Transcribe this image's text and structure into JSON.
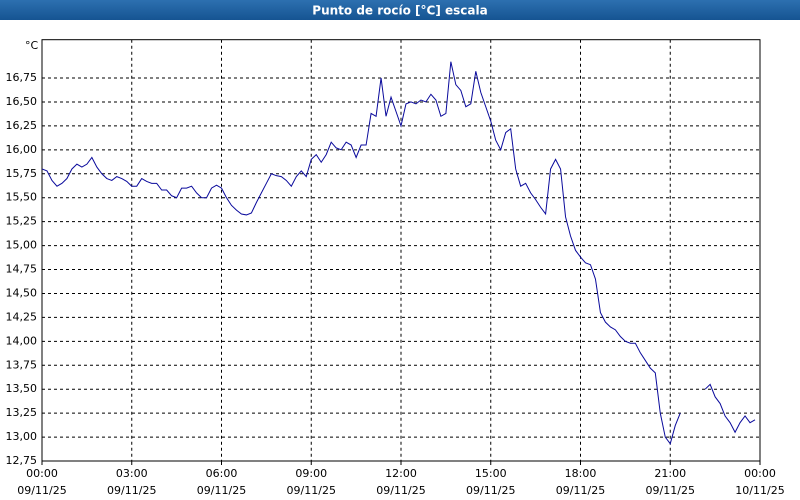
{
  "chart_data": {
    "type": "line",
    "title": "Punto de rocío [°C] escala",
    "y_label": "°C",
    "x": [
      0,
      10,
      20,
      30,
      40,
      50,
      60,
      70,
      80,
      90,
      100,
      110,
      120,
      130,
      140,
      150,
      160,
      170,
      180,
      190,
      200,
      210,
      220,
      230,
      240,
      250,
      260,
      270,
      280,
      290,
      300,
      310,
      320,
      330,
      340,
      350,
      360,
      370,
      380,
      390,
      400,
      410,
      420,
      430,
      440,
      450,
      460,
      470,
      480,
      490,
      500,
      510,
      520,
      530,
      540,
      550,
      560,
      570,
      580,
      590,
      600,
      610,
      620,
      630,
      640,
      650,
      660,
      670,
      680,
      690,
      700,
      710,
      720,
      730,
      740,
      750,
      760,
      770,
      780,
      790,
      800,
      810,
      820,
      830,
      840,
      850,
      860,
      870,
      880,
      890,
      900,
      910,
      920,
      930,
      940,
      950,
      960,
      970,
      980,
      990,
      1000,
      1010,
      1020,
      1030,
      1040,
      1050,
      1060,
      1070,
      1080,
      1090,
      1100,
      1110,
      1120,
      1130,
      1140,
      1150,
      1160,
      1170,
      1180,
      1190,
      1200,
      1210,
      1220,
      1230,
      1240,
      1250,
      1260,
      1270,
      1280,
      1290,
      1300,
      1310,
      1320,
      1330,
      1340,
      1350,
      1360,
      1370,
      1380,
      1390,
      1400,
      1410,
      1420,
      1430
    ],
    "series": [
      {
        "name": "Punto de rocío",
        "color": "#0a0a9c",
        "values": [
          15.8,
          15.78,
          15.68,
          15.62,
          15.65,
          15.7,
          15.8,
          15.85,
          15.82,
          15.85,
          15.92,
          15.82,
          15.75,
          15.7,
          15.68,
          15.72,
          15.7,
          15.67,
          15.62,
          15.62,
          15.7,
          15.67,
          15.65,
          15.65,
          15.58,
          15.58,
          15.52,
          15.5,
          15.6,
          15.6,
          15.62,
          15.55,
          15.5,
          15.5,
          15.6,
          15.63,
          15.6,
          15.5,
          15.42,
          15.37,
          15.33,
          15.32,
          15.34,
          15.45,
          15.55,
          15.65,
          15.75,
          15.73,
          15.72,
          15.68,
          15.62,
          15.72,
          15.78,
          15.72,
          15.9,
          15.95,
          15.87,
          15.95,
          16.08,
          16.02,
          16.0,
          16.08,
          16.05,
          15.92,
          16.05,
          16.05,
          16.38,
          16.35,
          16.75,
          16.35,
          16.55,
          16.4,
          16.25,
          16.48,
          16.5,
          16.48,
          16.52,
          16.5,
          16.58,
          16.52,
          16.35,
          16.38,
          16.92,
          16.68,
          16.62,
          16.45,
          16.48,
          16.82,
          16.6,
          16.45,
          16.3,
          16.1,
          16.0,
          16.18,
          16.22,
          15.8,
          15.62,
          15.65,
          15.55,
          15.48,
          15.4,
          15.33,
          15.8,
          15.9,
          15.8,
          15.3,
          15.1,
          14.95,
          14.88,
          14.82,
          14.8,
          14.65,
          14.3,
          14.2,
          14.15,
          14.12,
          14.05,
          14.0,
          13.98,
          13.98,
          13.88,
          13.8,
          13.72,
          13.67,
          13.25,
          13.0,
          12.93,
          13.12,
          13.25,
          null,
          null,
          null,
          null,
          13.5,
          13.55,
          13.42,
          13.35,
          13.22,
          13.15,
          13.05,
          13.15,
          13.22,
          13.15,
          13.18
        ]
      }
    ],
    "xlim": [
      0,
      1440
    ],
    "xticks": [
      {
        "value": 0,
        "label": "00:00",
        "date": "09/11/25"
      },
      {
        "value": 180,
        "label": "03:00",
        "date": "09/11/25"
      },
      {
        "value": 360,
        "label": "06:00",
        "date": "09/11/25"
      },
      {
        "value": 540,
        "label": "09:00",
        "date": "09/11/25"
      },
      {
        "value": 720,
        "label": "12:00",
        "date": "09/11/25"
      },
      {
        "value": 900,
        "label": "15:00",
        "date": "09/11/25"
      },
      {
        "value": 1080,
        "label": "18:00",
        "date": "09/11/25"
      },
      {
        "value": 1260,
        "label": "21:00",
        "date": "09/11/25"
      },
      {
        "value": 1440,
        "label": "00:00",
        "date": "10/11/25"
      }
    ],
    "ylim": [
      12.75,
      17.15
    ],
    "yticks": [
      {
        "value": 12.75,
        "label": "12,75"
      },
      {
        "value": 13,
        "label": "13,00"
      },
      {
        "value": 13.25,
        "label": "13,25"
      },
      {
        "value": 13.5,
        "label": "13,50"
      },
      {
        "value": 13.75,
        "label": "13,75"
      },
      {
        "value": 14,
        "label": "14,00"
      },
      {
        "value": 14.25,
        "label": "14,25"
      },
      {
        "value": 14.5,
        "label": "14,50"
      },
      {
        "value": 14.75,
        "label": "14,75"
      },
      {
        "value": 15,
        "label": "15,00"
      },
      {
        "value": 15.25,
        "label": "15,25"
      },
      {
        "value": 15.5,
        "label": "15,50"
      },
      {
        "value": 15.75,
        "label": "15,75"
      },
      {
        "value": 16,
        "label": "16,00"
      },
      {
        "value": 16.25,
        "label": "16,25"
      },
      {
        "value": 16.5,
        "label": "16,50"
      },
      {
        "value": 16.75,
        "label": "16,75"
      }
    ],
    "grid": true
  }
}
